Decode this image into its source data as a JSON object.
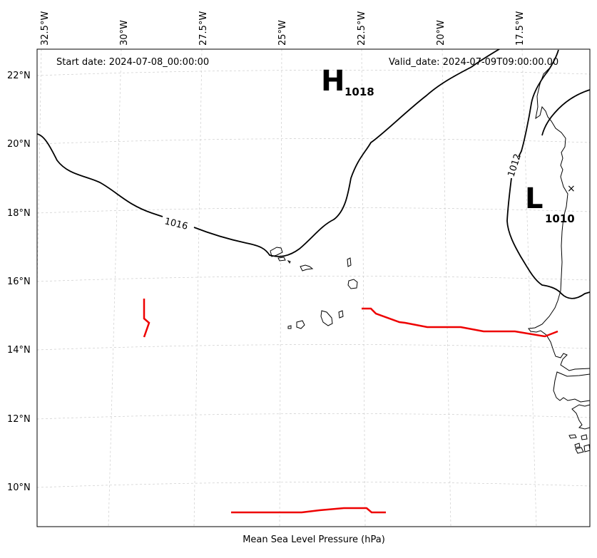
{
  "header": {
    "start_date": "Start date: 2024-07-08_00:00:00",
    "valid_date": "Valid_date: 2024-07-09T09:00:00.00"
  },
  "caption": "Mean Sea Level Pressure (hPa)",
  "lon_labels": [
    "32.5°W",
    "30°W",
    "27.5°W",
    "25°W",
    "22.5°W",
    "20°W",
    "17.5°W"
  ],
  "lat_labels": [
    "22°N",
    "20°N",
    "18°N",
    "16°N",
    "14°N",
    "12°N",
    "10°N"
  ],
  "contour_labels": {
    "c1016": "1016",
    "c1012": "1012"
  },
  "pressure_centers": {
    "high": {
      "letter": "H",
      "value": "1018"
    },
    "low": {
      "letter": "L",
      "value": "1010"
    }
  },
  "colors": {
    "isobar": "#000000",
    "front": "#ee0000",
    "gridline": "#cccccc",
    "coastline": "#000000"
  }
}
